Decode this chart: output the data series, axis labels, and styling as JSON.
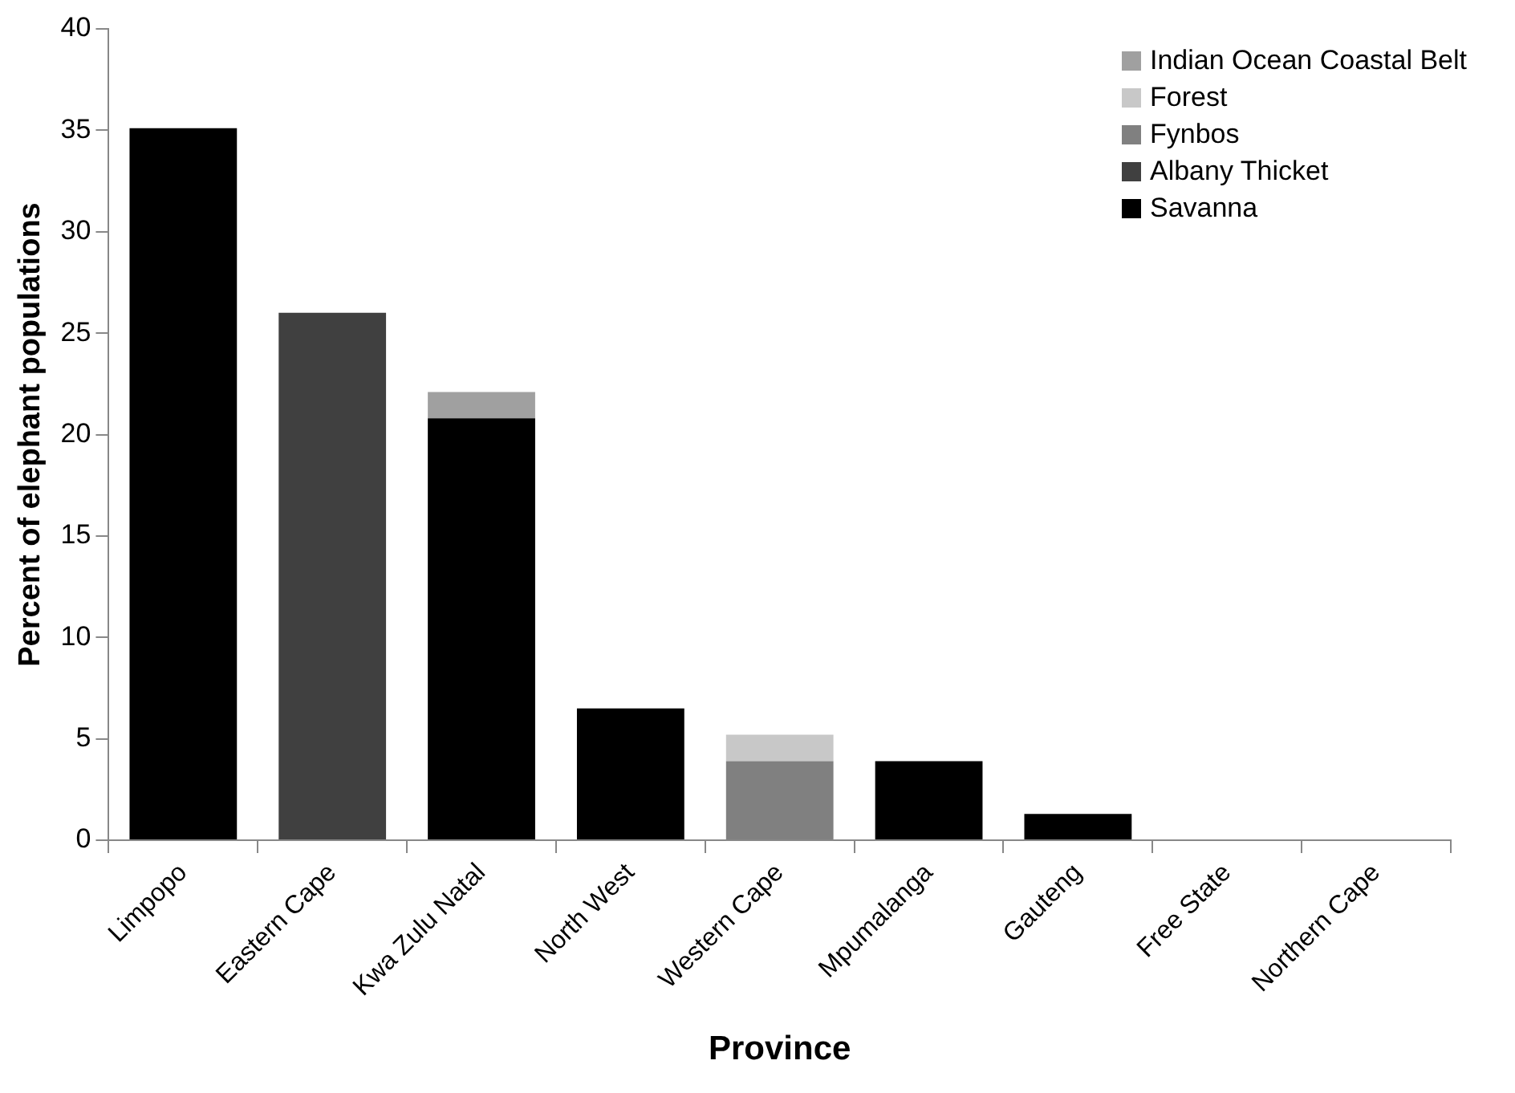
{
  "chart_data": {
    "type": "bar",
    "stacked": true,
    "xlabel": "Province",
    "ylabel": "Percent of elephant populations",
    "categories": [
      "Limpopo",
      "Eastern Cape",
      "Kwa Zulu Natal",
      "North West",
      "Western Cape",
      "Mpumalanga",
      "Gauteng",
      "Free State",
      "Northern Cape"
    ],
    "series": [
      {
        "name": "Savanna",
        "color": "#000000",
        "values": [
          35.1,
          null,
          20.8,
          6.5,
          null,
          3.9,
          1.3,
          0,
          0
        ]
      },
      {
        "name": "Albany Thicket",
        "color": "#404040",
        "values": [
          null,
          26.0,
          null,
          null,
          null,
          null,
          null,
          null,
          null
        ]
      },
      {
        "name": "Fynbos",
        "color": "#808080",
        "values": [
          null,
          null,
          null,
          null,
          3.9,
          null,
          null,
          null,
          null
        ]
      },
      {
        "name": "Forest",
        "color": "#c8c8c8",
        "values": [
          null,
          null,
          null,
          null,
          1.3,
          null,
          null,
          null,
          null
        ]
      },
      {
        "name": "Indian Ocean Coastal Belt",
        "color": "#a0a0a0",
        "values": [
          null,
          null,
          1.3,
          null,
          null,
          null,
          null,
          null,
          null
        ]
      }
    ],
    "ylim": [
      0,
      40
    ],
    "yticks": [
      0,
      5,
      10,
      15,
      20,
      25,
      30,
      35,
      40
    ],
    "grid": false,
    "legend": "top right"
  }
}
